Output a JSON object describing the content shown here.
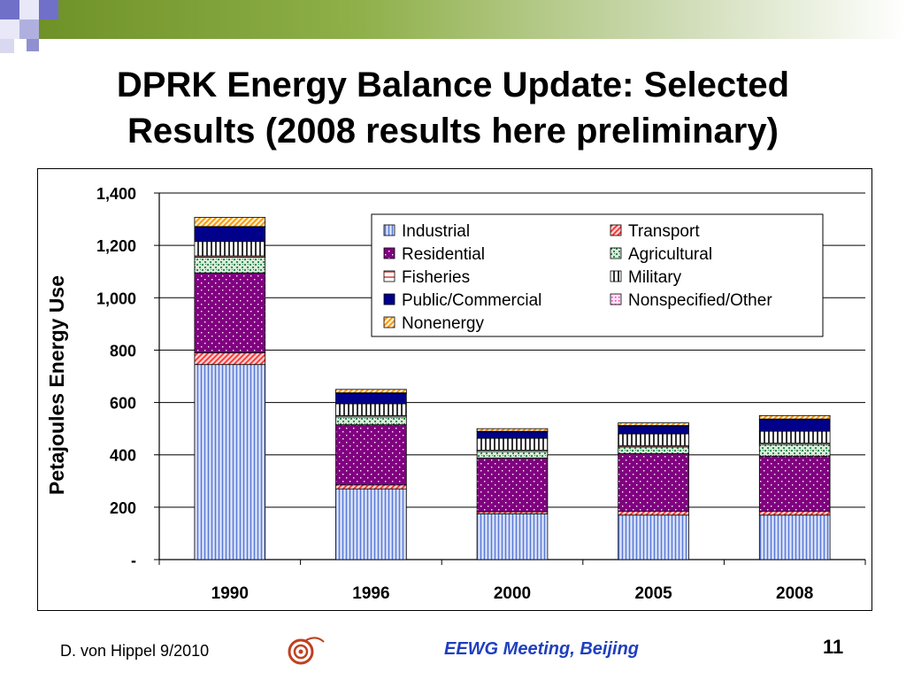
{
  "slide": {
    "title_line1": "DPRK Energy Balance Update: Selected",
    "title_line2": "Results (2008 results here preliminary)",
    "footer_author": "D. von Hippel  9/2010",
    "footer_event": "EEWG Meeting, Beijing",
    "page_number": "11"
  },
  "chart_data": {
    "type": "bar",
    "stacked": true,
    "ylabel": "Petajoules Energy Use",
    "xlabel": "",
    "ylim": [
      0,
      1400
    ],
    "yticks": [
      0,
      200,
      400,
      600,
      800,
      1000,
      1200,
      1400
    ],
    "ytick_labels": [
      "-",
      "200",
      "400",
      "600",
      "800",
      "1,000",
      "1,200",
      "1,400"
    ],
    "grid": true,
    "legend_position": "top-right",
    "categories": [
      "1990",
      "1996",
      "2000",
      "2005",
      "2008"
    ],
    "series": [
      {
        "name": "Industrial",
        "values": [
          745,
          270,
          175,
          170,
          170
        ],
        "color": "#6f8fe0",
        "pattern": "vlines"
      },
      {
        "name": "Transport",
        "values": [
          45,
          15,
          8,
          15,
          15
        ],
        "color": "#ff6060",
        "pattern": "diag"
      },
      {
        "name": "Residential",
        "values": [
          305,
          230,
          205,
          220,
          210
        ],
        "color": "#800080",
        "pattern": "dots"
      },
      {
        "name": "Agricultural",
        "values": [
          60,
          30,
          25,
          25,
          45
        ],
        "color": "#2e8b57",
        "pattern": "speckle"
      },
      {
        "name": "Fisheries",
        "values": [
          5,
          5,
          5,
          5,
          5
        ],
        "color": "#d04040",
        "pattern": "hline"
      },
      {
        "name": "Military",
        "values": [
          55,
          45,
          45,
          45,
          45
        ],
        "color": "#000000",
        "pattern": "bricks"
      },
      {
        "name": "Public/Commercial",
        "values": [
          55,
          40,
          25,
          30,
          45
        ],
        "color": "#00008b",
        "pattern": "solid"
      },
      {
        "name": "Nonspecified/Other",
        "values": [
          2,
          2,
          2,
          2,
          2
        ],
        "color": "#ff66cc",
        "pattern": "pinkdots"
      },
      {
        "name": "Nonenergy",
        "values": [
          35,
          13,
          10,
          10,
          13
        ],
        "color": "#ff9900",
        "pattern": "orangediag"
      }
    ],
    "legend_order": [
      "Industrial",
      "Transport",
      "Residential",
      "Agricultural",
      "Fisheries",
      "Military",
      "Public/Commercial",
      "Nonspecified/Other",
      "Nonenergy"
    ]
  }
}
